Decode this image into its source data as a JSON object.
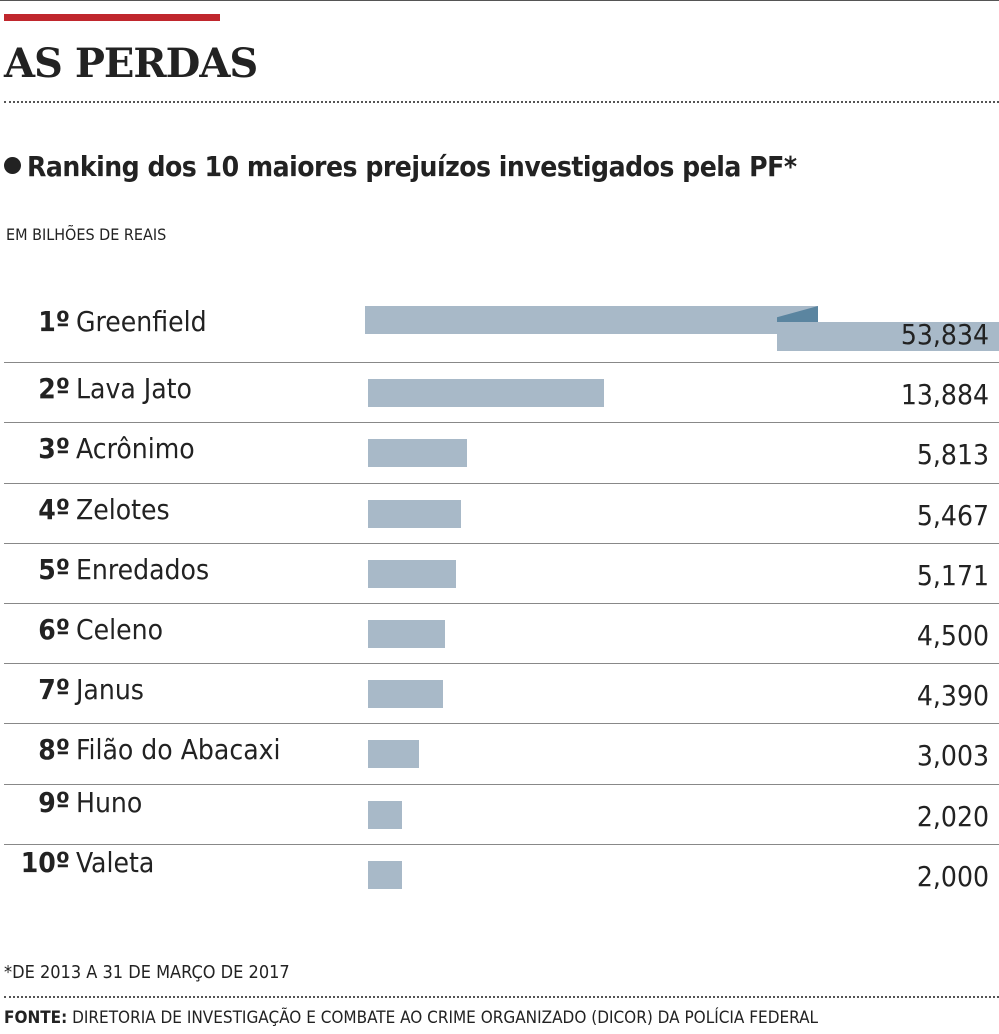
{
  "header": {
    "title": "AS PERDAS",
    "subtitle": "Ranking dos 10 maiores prejuízos investigados pela PF*",
    "unit": "EM BILHÕES DE REAIS"
  },
  "colors": {
    "bar": "#a8b9c8",
    "bar_fold": "#5b85a0",
    "accent": "#c0272d"
  },
  "chart_data": {
    "type": "bar",
    "title": "Ranking dos 10 maiores prejuízos investigados pela PF*",
    "ylabel": "EM BILHÕES DE REAIS",
    "broken_axis_for": "Greenfield",
    "categories": [
      "Greenfield",
      "Lava Jato",
      "Acrônimo",
      "Zelotes",
      "Enredados",
      "Celeno",
      "Janus",
      "Filão do Abacaxi",
      "Huno",
      "Valeta"
    ],
    "ranks": [
      "1º",
      "2º",
      "3º",
      "4º",
      "5º",
      "6º",
      "7º",
      "8º",
      "9º",
      "10º"
    ],
    "values": [
      53.834,
      13.884,
      5.813,
      5.467,
      5.171,
      4.5,
      4.39,
      3.003,
      2.02,
      2.0
    ],
    "labels": [
      "53,834",
      "13,884",
      "5,813",
      "5,467",
      "5,171",
      "4,500",
      "4,390",
      "3,003",
      "2,020",
      "2,000"
    ]
  },
  "footer": {
    "note": "*DE 2013 A 31 DE MARÇO DE 2017",
    "source_label": "FONTE:",
    "source": "DIRETORIA DE INVESTIGAÇÃO E COMBATE AO CRIME ORGANIZADO (DICOR) DA POLÍCIA FEDERAL"
  }
}
